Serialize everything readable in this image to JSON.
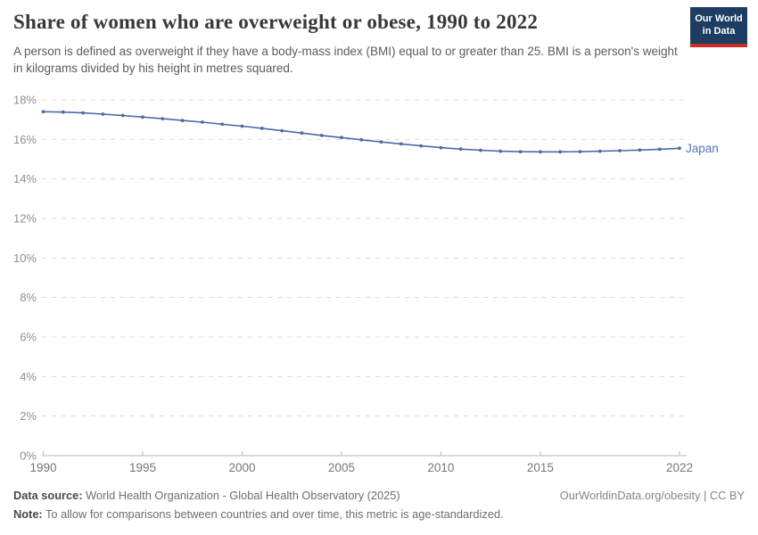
{
  "header": {
    "logo": {
      "line1": "Our World",
      "line2": "in Data",
      "bg": "#1d3d63",
      "stripe": "#cf2d24"
    }
  },
  "chart_data": {
    "type": "line",
    "title": "Share of women who are overweight or obese, 1990 to 2022",
    "subtitle": "A person is defined as overweight if they have a body-mass index (BMI) equal to or greater than 25. BMI is a person's weight in kilograms divided by his height in metres squared.",
    "x": [
      1990,
      1991,
      1992,
      1993,
      1994,
      1995,
      1996,
      1997,
      1998,
      1999,
      2000,
      2001,
      2002,
      2003,
      2004,
      2005,
      2006,
      2007,
      2008,
      2009,
      2010,
      2011,
      2012,
      2013,
      2014,
      2015,
      2016,
      2017,
      2018,
      2019,
      2020,
      2021,
      2022
    ],
    "series": [
      {
        "name": "Japan",
        "color": "#4d6ba3",
        "label_color": "#5276b5",
        "values": [
          17.4,
          17.38,
          17.34,
          17.28,
          17.21,
          17.13,
          17.05,
          16.96,
          16.87,
          16.77,
          16.67,
          16.56,
          16.44,
          16.32,
          16.2,
          16.09,
          15.98,
          15.87,
          15.77,
          15.67,
          15.58,
          15.51,
          15.45,
          15.4,
          15.38,
          15.37,
          15.37,
          15.38,
          15.4,
          15.43,
          15.46,
          15.5,
          15.55
        ]
      }
    ],
    "xlim": [
      1990,
      2022
    ],
    "ylim": [
      0,
      18
    ],
    "x_ticks": [
      1990,
      1995,
      2000,
      2005,
      2010,
      2015,
      2022
    ],
    "y_ticks": [
      0,
      2,
      4,
      6,
      8,
      10,
      12,
      14,
      16,
      18
    ],
    "y_tick_format": "{}%",
    "grid": "horizontal-dashed",
    "legend": "line-end-label",
    "grid_color": "#dcdcdc",
    "axis_color": "#b8b8b8",
    "y_label_color": "#8f8f8f",
    "x_label_color": "#757575"
  },
  "footer": {
    "datasource_label": "Data source:",
    "datasource_text": " World Health Organization - Global Health Observatory (2025)",
    "link": "OurWorldinData.org/obesity | CC BY",
    "note_label": "Note:",
    "note_text": " To allow for comparisons between countries and over time, this metric is age-standardized."
  }
}
